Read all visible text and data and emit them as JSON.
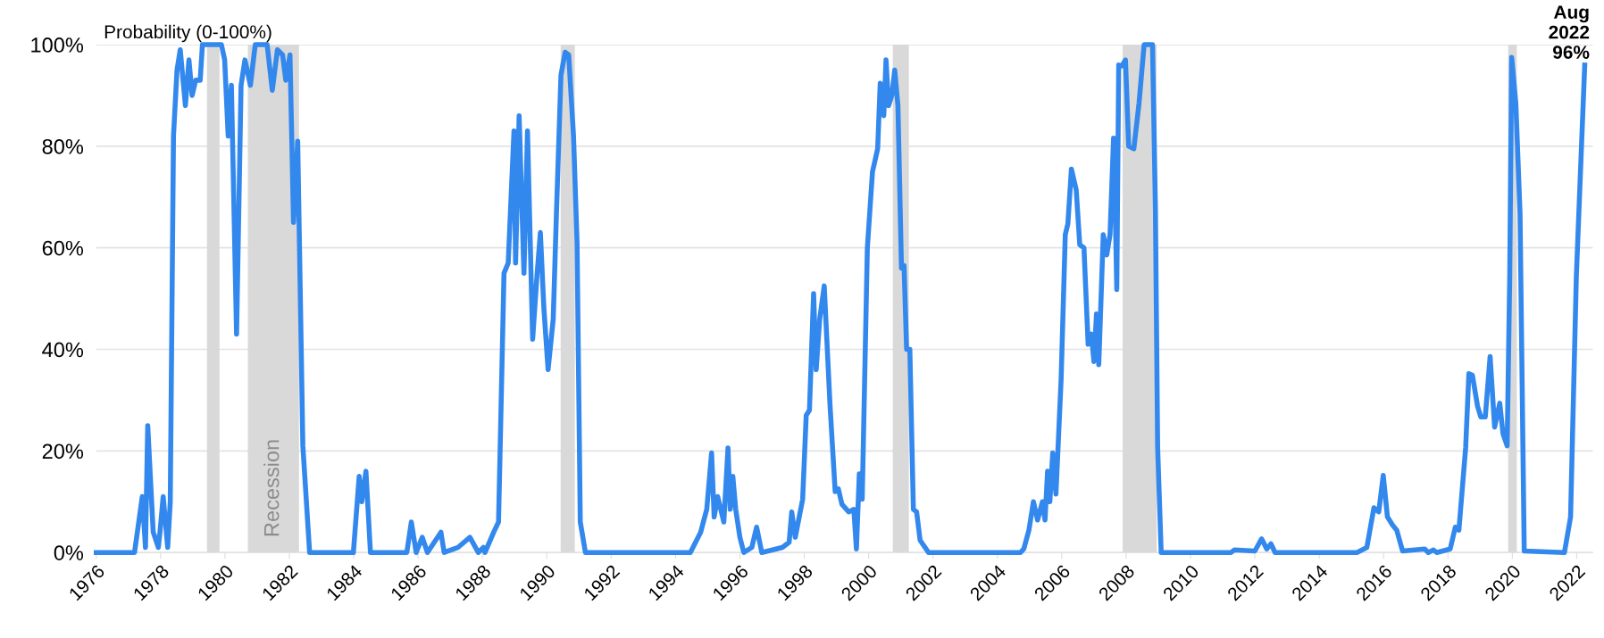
{
  "chart_data": {
    "type": "line",
    "ylabel": "Probability (0-100%)",
    "series": [
      {
        "color": "#3388ee",
        "x": [
          1976,
          1977.19,
          1977.43,
          1977.53,
          1977.6,
          1977.77,
          1977.93,
          1977.98,
          1978.08,
          1978.22,
          1978.3,
          1978.4,
          1978.51,
          1978.61,
          1978.77,
          1978.88,
          1978.98,
          1979.09,
          1979.23,
          1979.3,
          1979.89,
          1979.99,
          1980.1,
          1980.2,
          1980.36,
          1980.5,
          1980.62,
          1980.79,
          1980.94,
          1981.31,
          1981.47,
          1981.63,
          1981.79,
          1981.89,
          1982.02,
          1982.13,
          1982.26,
          1982.42,
          1982.63,
          1983.99,
          1984.17,
          1984.25,
          1984.38,
          1984.52,
          1985.65,
          1985.79,
          1985.94,
          1986.13,
          1986.29,
          1986.71,
          1986.81,
          1987.24,
          1987.61,
          1987.87,
          1988.03,
          1988.08,
          1988.35,
          1988.5,
          1988.67,
          1988.8,
          1988.98,
          1989.03,
          1989.14,
          1989.29,
          1989.4,
          1989.56,
          1989.7,
          1989.8,
          1989.91,
          1990.04,
          1990.2,
          1990.3,
          1990.44,
          1990.57,
          1990.68,
          1990.83,
          1990.94,
          1991.04,
          1991.2,
          1994.46,
          1994.78,
          1994.97,
          1995.12,
          1995.2,
          1995.31,
          1995.5,
          1995.63,
          1995.7,
          1995.78,
          1995.87,
          1996.0,
          1996.12,
          1996.37,
          1996.52,
          1996.68,
          1997.32,
          1997.53,
          1997.61,
          1997.72,
          1997.95,
          1998.06,
          1998.16,
          1998.29,
          1998.37,
          1998.48,
          1998.62,
          1998.8,
          1998.96,
          1999.06,
          1999.17,
          1999.38,
          1999.54,
          1999.62,
          1999.71,
          1999.8,
          1999.96,
          2000.12,
          2000.28,
          2000.36,
          2000.47,
          2000.54,
          2000.62,
          2000.72,
          2000.81,
          2000.91,
          2001.02,
          2001.1,
          2001.18,
          2001.28,
          2001.39,
          2001.49,
          2001.6,
          2001.86,
          2004.72,
          2004.82,
          2004.98,
          2005.12,
          2005.25,
          2005.4,
          2005.48,
          2005.56,
          2005.63,
          2005.72,
          2005.82,
          2005.98,
          2006.11,
          2006.19,
          2006.3,
          2006.45,
          2006.56,
          2006.69,
          2006.82,
          2006.92,
          2007.0,
          2007.08,
          2007.15,
          2007.29,
          2007.4,
          2007.5,
          2007.61,
          2007.66,
          2007.71,
          2007.77,
          2007.87,
          2007.98,
          2008.08,
          2008.24,
          2008.4,
          2008.56,
          2008.82,
          2008.91,
          2008.98,
          2009.09,
          2011.26,
          2011.36,
          2012.0,
          2012.21,
          2012.37,
          2012.5,
          2012.63,
          2015.17,
          2015.48,
          2015.7,
          2015.85,
          2015.99,
          2016.12,
          2016.28,
          2016.41,
          2016.59,
          2017.28,
          2017.39,
          2017.55,
          2017.65,
          2018.07,
          2018.23,
          2018.34,
          2018.55,
          2018.65,
          2018.76,
          2018.92,
          2019.02,
          2019.16,
          2019.31,
          2019.45,
          2019.61,
          2019.71,
          2019.84,
          2019.92,
          2019.98,
          2020.11,
          2020.24,
          2020.37,
          2021.62,
          2021.81,
          2021.99,
          2022.25
        ],
        "values": [
          0,
          0,
          11,
          1,
          25,
          4,
          1,
          4,
          11,
          1,
          10,
          82,
          95,
          99,
          88,
          97,
          90,
          93,
          93,
          100,
          100,
          97,
          82,
          92,
          43,
          92,
          97,
          92,
          100,
          100,
          91,
          99,
          98,
          93,
          98,
          65,
          81,
          21,
          0,
          0,
          15,
          10,
          16,
          0,
          0,
          6,
          0,
          3,
          0,
          4,
          0,
          1,
          3,
          0,
          1,
          0,
          4,
          6,
          55,
          57,
          83,
          57,
          86,
          55,
          83,
          42,
          55,
          63,
          48,
          36,
          46,
          67,
          94,
          98.5,
          98,
          82,
          61,
          6,
          0,
          0,
          4,
          8.5,
          19.6,
          7,
          11,
          6,
          20.6,
          8.5,
          15,
          8.5,
          3,
          0,
          1,
          5,
          0,
          1,
          2,
          8,
          3,
          10.5,
          27,
          28,
          51,
          36,
          46,
          52.5,
          29,
          12,
          12.5,
          9.5,
          8,
          8.5,
          0.7,
          15.5,
          10.5,
          60,
          75,
          79.5,
          92.4,
          86,
          97,
          88,
          90,
          95,
          88,
          56,
          56.5,
          40,
          40,
          8.5,
          8,
          2.4,
          0,
          0,
          0.7,
          4.4,
          10,
          6.4,
          10,
          6.4,
          16,
          10,
          19.6,
          11.5,
          34,
          62.6,
          64.7,
          75.5,
          71.4,
          60.6,
          60,
          41,
          43,
          37.6,
          47,
          37,
          62.6,
          58.6,
          62.6,
          81.6,
          68,
          51.8,
          96,
          95.8,
          97,
          80,
          79.5,
          88.4,
          100,
          100,
          68,
          20.6,
          0,
          0,
          0.5,
          0.3,
          2.7,
          0.7,
          1.7,
          0,
          0,
          1,
          8.8,
          8,
          15.2,
          7,
          5.4,
          4.4,
          0.3,
          0.7,
          0,
          0.5,
          0,
          0.7,
          5,
          4.4,
          20.6,
          35.2,
          34.9,
          28.8,
          26.7,
          26.7,
          38.6,
          24.7,
          29.4,
          23.4,
          21,
          54.5,
          97.5,
          88.4,
          66.7,
          0.3,
          0,
          7,
          54.5,
          96
        ]
      }
    ],
    "xlim": [
      1976,
      2022.5
    ],
    "xticks": [
      1976,
      1978,
      1980,
      1982,
      1984,
      1986,
      1988,
      1990,
      1992,
      1994,
      1996,
      1998,
      2000,
      2002,
      2004,
      2006,
      2008,
      2010,
      2012,
      2014,
      2016,
      2018,
      2020,
      2022
    ],
    "ylim": [
      0,
      100
    ],
    "yticks": [
      {
        "value": 0,
        "label": "0%"
      },
      {
        "value": 20,
        "label": "20%"
      },
      {
        "value": 40,
        "label": "40%"
      },
      {
        "value": 60,
        "label": "60%"
      },
      {
        "value": 80,
        "label": "80%"
      },
      {
        "value": 100,
        "label": "100%"
      }
    ],
    "grid": "y",
    "marker": "none",
    "line_style": "solid",
    "bands": [
      {
        "axis": "x",
        "from": 1979.44,
        "to": 1979.83,
        "color": "#d9d9d9"
      },
      {
        "axis": "x",
        "from": 1980.71,
        "to": 1982.3,
        "label": "Recession",
        "color": "#d9d9d9"
      },
      {
        "axis": "x",
        "from": 1990.43,
        "to": 1990.87,
        "color": "#d9d9d9"
      },
      {
        "axis": "x",
        "from": 2000.75,
        "to": 2001.25,
        "color": "#d9d9d9"
      },
      {
        "axis": "x",
        "from": 2007.89,
        "to": 2008.95,
        "color": "#d9d9d9"
      },
      {
        "axis": "x",
        "from": 2019.87,
        "to": 2020.14,
        "color": "#d9d9d9"
      }
    ],
    "annotations": [
      {
        "text": "Aug\n2022\n96%",
        "x": 2022.25,
        "y": 96
      }
    ]
  }
}
